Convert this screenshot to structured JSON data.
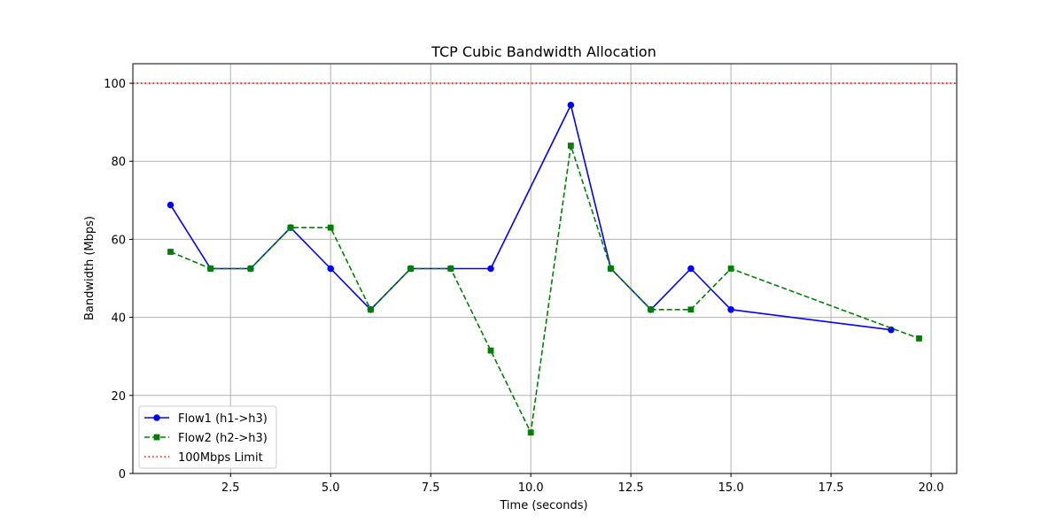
{
  "chart_data": {
    "type": "line",
    "title": "TCP Cubic Bandwidth Allocation",
    "xlabel": "Time (seconds)",
    "ylabel": "Bandwidth (Mbps)",
    "xlim": [
      0.06,
      20.64
    ],
    "ylim": [
      0,
      105
    ],
    "xticks": [
      2.5,
      5.0,
      7.5,
      10.0,
      12.5,
      15.0,
      17.5,
      20.0
    ],
    "xtick_labels": [
      "2.5",
      "5.0",
      "7.5",
      "10.0",
      "12.5",
      "15.0",
      "17.5",
      "20.0"
    ],
    "yticks": [
      0,
      20,
      40,
      60,
      80,
      100
    ],
    "ytick_labels": [
      "0",
      "20",
      "40",
      "60",
      "80",
      "100"
    ],
    "grid": true,
    "legend_position": "lower-left",
    "series": [
      {
        "name": "Flow1 (h1->h3)",
        "color": "#0000ff",
        "line_style": "solid",
        "marker": "circle",
        "x": [
          1,
          2,
          3,
          4,
          5,
          6,
          7,
          8,
          9,
          11,
          12,
          13,
          14,
          15,
          19
        ],
        "y": [
          68.8,
          52.5,
          52.5,
          63.0,
          52.5,
          42.0,
          52.5,
          52.5,
          52.5,
          94.4,
          52.5,
          42.0,
          52.5,
          42.0,
          36.8
        ]
      },
      {
        "name": "Flow2 (h2->h3)",
        "color": "#008000",
        "line_style": "dashed",
        "marker": "square",
        "x": [
          1,
          2,
          3,
          4,
          5,
          6,
          7,
          8,
          9,
          10,
          11,
          12,
          13,
          14,
          15,
          19.7
        ],
        "y": [
          56.8,
          52.5,
          52.5,
          63.0,
          63.0,
          42.0,
          52.5,
          52.5,
          31.5,
          10.5,
          84.0,
          52.5,
          42.0,
          42.0,
          52.5,
          34.6
        ]
      }
    ],
    "reference_lines": [
      {
        "name": "100Mbps Limit",
        "y": 100,
        "color": "#ff0000",
        "line_style": "dotted"
      }
    ]
  }
}
